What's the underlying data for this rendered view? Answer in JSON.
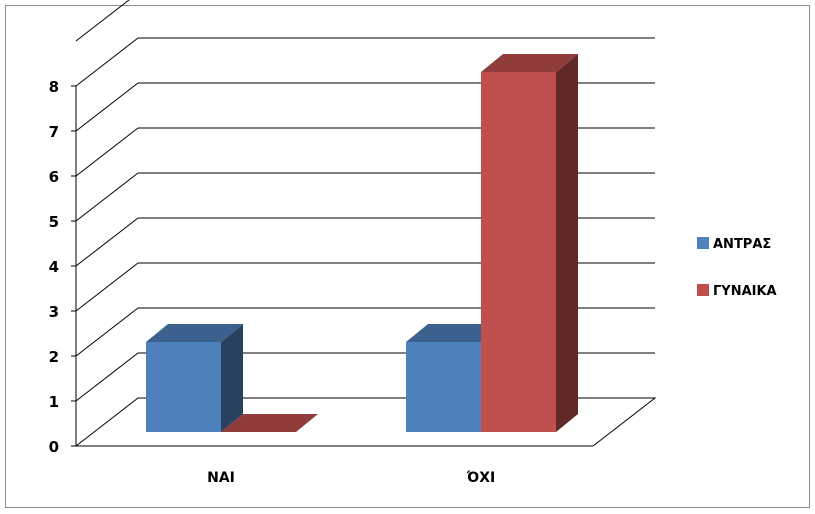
{
  "chart_data": {
    "type": "bar",
    "style": "3d-clustered-column",
    "categories": [
      "NAI",
      "ΌΧΙ"
    ],
    "series": [
      {
        "name": "ΑΝΤΡΑΣ",
        "values": [
          2,
          2
        ],
        "color": "#4f81bd"
      },
      {
        "name": "ΓΥΝΑΙΚΑ",
        "values": [
          0,
          8
        ],
        "color": "#c0504d"
      }
    ],
    "ylim": [
      0,
      8
    ],
    "yticks": [
      "0",
      "1",
      "2",
      "3",
      "4",
      "5",
      "6",
      "7",
      "8"
    ],
    "grid": true,
    "legend_position": "right"
  }
}
